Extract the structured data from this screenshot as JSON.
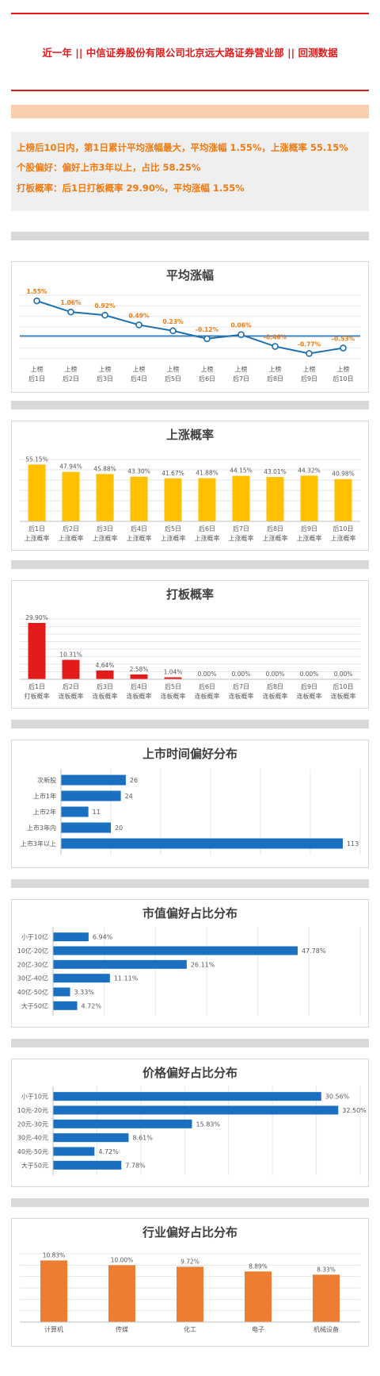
{
  "page": {
    "title": "近一年 || 中信证券股份有限公司北京远大路证券营业部 || 回测数据",
    "summary": [
      "上榜后10日内，第1日累计平均涨幅最大，平均涨幅 1.55%，上涨概率 55.15%",
      "个股偏好：偏好上市3年以上，占比 58.25%",
      "打板概率：后1日打板概率 29.90%，平均涨幅 1.55%"
    ]
  },
  "colors": {
    "title_red": "#e11b1b",
    "summary_orange": "#ee7a12",
    "peach_band": "#f9ceaf",
    "grey_band": "#d9d9d9",
    "line_blue": "#1d6fb0",
    "bar_yellow": "#ffc000",
    "bar_red": "#e41b1b",
    "bar_blue": "#1b6fc1",
    "bar_orange": "#ed7d31"
  },
  "chart_data": [
    {
      "type": "line",
      "title": "平均涨幅",
      "categories": [
        "上榜\n后1日",
        "上榜\n后2日",
        "上榜\n后3日",
        "上榜\n后4日",
        "上榜\n后5日",
        "上榜\n后6日",
        "上榜\n后7日",
        "上榜\n后8日",
        "上榜\n后9日",
        "上榜\n后10日"
      ],
      "values": [
        1.55,
        1.06,
        0.92,
        0.49,
        0.23,
        -0.12,
        0.06,
        -0.46,
        -0.77,
        -0.53
      ],
      "labels": [
        "1.55%",
        "1.06%",
        "0.92%",
        "0.49%",
        "0.23%",
        "-0.12%",
        "0.06%",
        "-0.46%",
        "-0.77%",
        "-0.53%"
      ],
      "ylim": [
        -1.0,
        1.8
      ],
      "grid": true
    },
    {
      "type": "bar",
      "title": "上涨概率",
      "categories": [
        "后1日\n上涨概率",
        "后2日\n上涨概率",
        "后3日\n上涨概率",
        "后4日\n上涨概率",
        "后5日\n上涨概率",
        "后6日\n上涨概率",
        "后7日\n上涨概率",
        "后8日\n上涨概率",
        "后9日\n上涨概率",
        "后10日\n上涨概率"
      ],
      "values": [
        55.15,
        47.94,
        45.88,
        43.3,
        41.67,
        41.88,
        44.15,
        43.01,
        44.32,
        40.98
      ],
      "labels": [
        "55.15%",
        "47.94%",
        "45.88%",
        "43.30%",
        "41.67%",
        "41.88%",
        "44.15%",
        "43.01%",
        "44.32%",
        "40.98%"
      ],
      "ylim": [
        0,
        60
      ],
      "grid": true
    },
    {
      "type": "bar",
      "title": "打板概率",
      "categories": [
        "后1日\n打板概率",
        "后2日\n连板概率",
        "后3日\n连板概率",
        "后4日\n连板概率",
        "后5日\n连板概率",
        "后6日\n连板概率",
        "后7日\n连板概率",
        "后8日\n连板概率",
        "后9日\n连板概率",
        "后10日\n连板概率"
      ],
      "values": [
        29.9,
        10.31,
        4.64,
        2.58,
        1.04,
        0,
        0,
        0,
        0,
        0
      ],
      "labels": [
        "29.90%",
        "10.31%",
        "4.64%",
        "2.58%",
        "1.04%",
        "0.00%",
        "0.00%",
        "0.00%",
        "0.00%",
        "0.00%"
      ],
      "ylim": [
        0,
        32
      ],
      "grid": true
    },
    {
      "type": "bar",
      "orientation": "horizontal",
      "title": "上市时间偏好分布",
      "categories": [
        "次新股",
        "上市1年",
        "上市2年",
        "上市3年内",
        "上市3年以上"
      ],
      "values": [
        26,
        24,
        11,
        20,
        113
      ],
      "labels": [
        "26",
        "24",
        "11",
        "20",
        "113"
      ],
      "xlim": [
        0,
        120
      ],
      "grid": true
    },
    {
      "type": "bar",
      "orientation": "horizontal",
      "title": "市值偏好占比分布",
      "categories": [
        "小于10亿",
        "10亿-20亿",
        "20亿-30亿",
        "30亿-40亿",
        "40亿-50亿",
        "大于50亿"
      ],
      "values": [
        6.94,
        47.78,
        26.11,
        11.11,
        3.33,
        4.72
      ],
      "labels": [
        "6.94%",
        "47.78%",
        "26.11%",
        "11.11%",
        "3.33%",
        "4.72%"
      ],
      "xlim": [
        0,
        60
      ],
      "grid": true
    },
    {
      "type": "bar",
      "orientation": "horizontal",
      "title": "价格偏好占比分布",
      "categories": [
        "小于10元",
        "10元-20元",
        "20元-30元",
        "30元-40元",
        "40元-50元",
        "大于50元"
      ],
      "values": [
        30.56,
        32.5,
        15.83,
        8.61,
        4.72,
        7.78
      ],
      "labels": [
        "30.56%",
        "32.50%",
        "15.83%",
        "8.61%",
        "4.72%",
        "7.78%"
      ],
      "xlim": [
        0,
        35
      ],
      "grid": true
    },
    {
      "type": "bar",
      "title": "行业偏好占比分布",
      "categories": [
        "计算机",
        "传媒",
        "化工",
        "电子",
        "机械设备"
      ],
      "values": [
        10.83,
        10.0,
        9.72,
        8.89,
        8.33
      ],
      "labels": [
        "10.83%",
        "10.00%",
        "9.72%",
        "8.89%",
        "8.33%"
      ],
      "ylim": [
        0,
        12
      ],
      "grid": true
    }
  ]
}
